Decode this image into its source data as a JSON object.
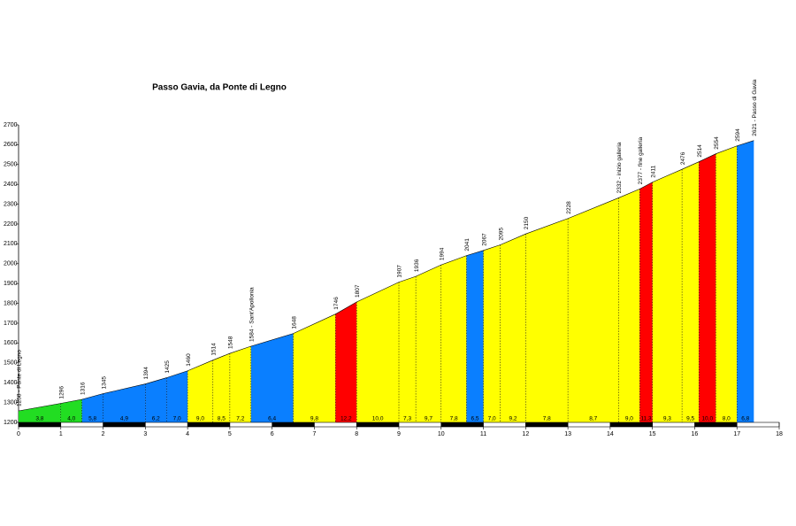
{
  "chart_data": {
    "type": "area",
    "title": "Passo Gavia, da Ponte di Legno",
    "x": [
      0,
      1,
      1.5,
      2,
      3,
      3.5,
      4,
      4.6,
      5,
      5.5,
      6.5,
      7.5,
      8,
      9,
      9.4,
      10,
      10.6,
      11,
      11.4,
      12,
      13,
      14.2,
      14.7,
      15,
      15.7,
      16.1,
      16.5,
      17,
      17.4
    ],
    "values": [
      1258,
      1296,
      1316,
      1345,
      1394,
      1425,
      1460,
      1514,
      1548,
      1584,
      1648,
      1746,
      1807,
      1907,
      1936,
      1994,
      2041,
      2067,
      2095,
      2150,
      2228,
      2332,
      2377,
      2411,
      2476,
      2514,
      2554,
      2594,
      2621
    ],
    "value_labels": [
      "1258 - Ponte di Legno",
      "1296",
      "1316",
      "1345",
      "1394",
      "1425",
      "1460",
      "1514",
      "1548",
      "1584 - Sant'Apollonia",
      "1648",
      "1746",
      "1807",
      "1907",
      "1936",
      "1994",
      "2041",
      "2067",
      "2095",
      "2150",
      "2228",
      "2332 - inizio galleria",
      "2377 - fine galleria",
      "2411",
      "2476",
      "2514",
      "2554",
      "2594",
      "2621 - Passo di Gavia"
    ],
    "gradients": {
      "values": [
        3.8,
        4.0,
        5.8,
        4.9,
        6.2,
        7.0,
        9.0,
        8.5,
        7.2,
        6.4,
        9.8,
        12.2,
        10.0,
        7.3,
        9.7,
        7.8,
        6.5,
        7.0,
        9.2,
        7.8,
        8.7,
        9.0,
        11.3,
        9.3,
        9.5,
        10.0,
        8.0,
        6.8
      ],
      "value_labels": [
        "3,8",
        "4,0",
        "5,8",
        "4,9",
        "6,2",
        "7,0",
        "9,0",
        "8,5",
        "7,2",
        "6,4",
        "9,8",
        "12,2",
        "10,0",
        "7,3",
        "9,7",
        "7,8",
        "6,5",
        "7,0",
        "9,2",
        "7,8",
        "8,7",
        "9,0",
        "11,3",
        "9,3",
        "9,5",
        "10,0",
        "8,0",
        "6,8"
      ],
      "colors": [
        "#22dd22",
        "#22dd22",
        "#0a7fff",
        "#0a7fff",
        "#0a7fff",
        "#0a7fff",
        "#ffff00",
        "#ffff00",
        "#ffff00",
        "#0a7fff",
        "#ffff00",
        "#ff0000",
        "#ffff00",
        "#ffff00",
        "#ffff00",
        "#ffff00",
        "#0a7fff",
        "#ffff00",
        "#ffff00",
        "#ffff00",
        "#ffff00",
        "#ffff00",
        "#ff0000",
        "#ffff00",
        "#ffff00",
        "#ff0000",
        "#ffff00",
        "#0a7fff"
      ]
    },
    "xlim": [
      0,
      18
    ],
    "xticks": [
      0,
      1,
      2,
      3,
      4,
      5,
      6,
      7,
      8,
      9,
      10,
      11,
      12,
      13,
      14,
      15,
      16,
      17,
      18
    ],
    "ylim": [
      1200,
      2700
    ],
    "yticks": [
      1200,
      1300,
      1400,
      1500,
      1600,
      1700,
      1800,
      1900,
      2000,
      2100,
      2200,
      2300,
      2400,
      2500,
      2600,
      2700
    ]
  }
}
